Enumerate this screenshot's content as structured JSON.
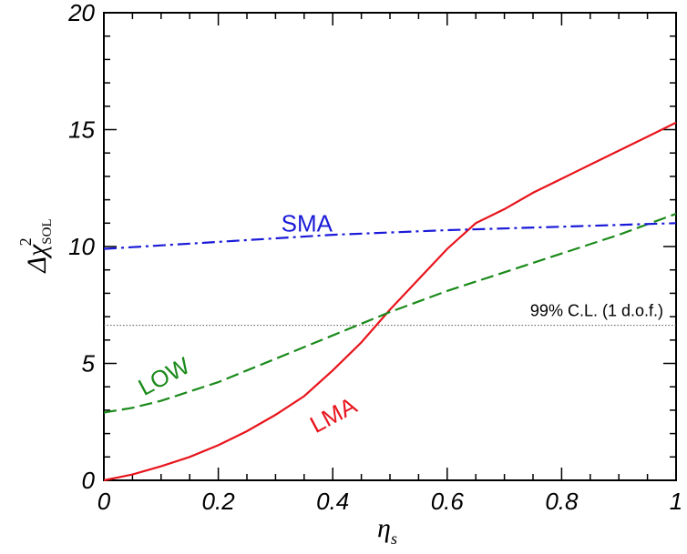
{
  "chart_data": {
    "type": "line",
    "xlim": [
      0,
      1
    ],
    "ylim": [
      0,
      20
    ],
    "x_ticks": [
      0,
      0.2,
      0.4,
      0.6,
      0.8,
      1
    ],
    "x_tick_labels": [
      "0",
      "0.2",
      "0.4",
      "0.6",
      "0.8",
      "1"
    ],
    "y_ticks": [
      0,
      5,
      10,
      15,
      20
    ],
    "y_tick_labels": [
      "0",
      "5",
      "10",
      "15",
      "20"
    ],
    "xlabel": {
      "main": "η",
      "sub": "s"
    },
    "ylabel": {
      "main": "Δχ",
      "sup": "2",
      "sub": "SOL"
    },
    "grid": false,
    "series": [
      {
        "name": "LMA",
        "color": "#e8141c",
        "dash": "solid",
        "x": [
          0,
          0.05,
          0.1,
          0.15,
          0.2,
          0.25,
          0.3,
          0.35,
          0.4,
          0.45,
          0.5,
          0.55,
          0.6,
          0.65,
          0.7,
          0.75,
          0.8,
          0.85,
          0.9,
          0.95,
          1.0
        ],
        "y": [
          0,
          0.25,
          0.6,
          1.0,
          1.5,
          2.1,
          2.8,
          3.6,
          4.7,
          5.9,
          7.3,
          8.6,
          9.9,
          11.0,
          11.6,
          12.3,
          12.9,
          13.5,
          14.1,
          14.7,
          15.3
        ]
      },
      {
        "name": "LOW",
        "color": "#1a8a1a",
        "dash": "dashed",
        "x": [
          0,
          0.05,
          0.1,
          0.15,
          0.2,
          0.25,
          0.3,
          0.4,
          0.5,
          0.6,
          0.7,
          0.8,
          0.9,
          1.0
        ],
        "y": [
          2.9,
          3.1,
          3.4,
          3.8,
          4.2,
          4.7,
          5.2,
          6.2,
          7.2,
          8.1,
          8.9,
          9.7,
          10.5,
          11.4
        ]
      },
      {
        "name": "SMA",
        "color": "#1a1ad8",
        "dash": "dashdot",
        "x": [
          0,
          0.2,
          0.4,
          0.6,
          0.8,
          1.0
        ],
        "y": [
          9.9,
          10.2,
          10.5,
          10.7,
          10.85,
          11.0
        ]
      }
    ],
    "reference_lines": [
      {
        "y": 6.63,
        "label": "99% C.L. (1 d.o.f.)",
        "style": "dotted",
        "color": "#555555"
      }
    ],
    "annotations": [
      {
        "text": "SMA",
        "color": "#1a1ad8",
        "x": 0.31,
        "y": 10.65
      },
      {
        "text": "LOW",
        "color": "#1a8a1a",
        "x": 0.07,
        "y": 3.6
      },
      {
        "text": "LMA",
        "color": "#e8141c",
        "x": 0.37,
        "y": 2.0
      }
    ]
  }
}
